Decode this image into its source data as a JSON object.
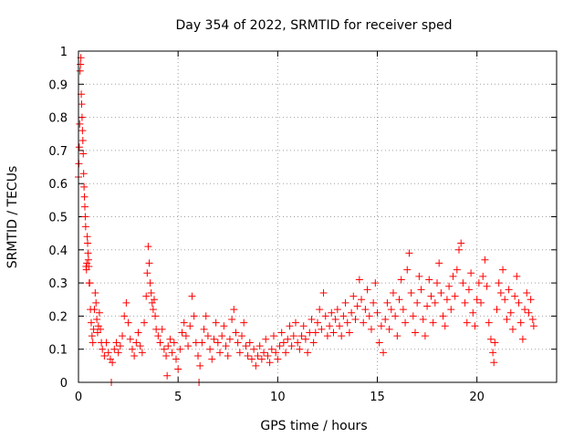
{
  "chart_data": {
    "type": "scatter",
    "title": "Day 354 of 2022, SRMTID for receiver sped",
    "xlabel": "GPS time / hours",
    "ylabel": "SRMTID / TECUs",
    "xlim": [
      0,
      24
    ],
    "ylim": [
      0,
      1
    ],
    "xticks": [
      0,
      5,
      10,
      15,
      20
    ],
    "xtick_labels": [
      "0",
      "5",
      "10",
      "15",
      "20"
    ],
    "yticks": [
      0,
      0.1,
      0.2,
      0.3,
      0.4,
      0.5,
      0.6,
      0.7,
      0.8,
      0.9,
      1
    ],
    "ytick_labels": [
      "0",
      "0.1",
      "0.2",
      "0.3",
      "0.4",
      "0.5",
      "0.6",
      "0.7",
      "0.8",
      "0.9",
      "1"
    ],
    "grid": true,
    "marker": "+",
    "color": "#ff0000",
    "series": [
      {
        "name": "SRMTID",
        "points": [
          [
            0.0,
            0.62
          ],
          [
            0.02,
            0.66
          ],
          [
            0.04,
            0.71
          ],
          [
            0.06,
            0.78
          ],
          [
            0.08,
            0.94
          ],
          [
            0.1,
            0.96
          ],
          [
            0.12,
            0.98
          ],
          [
            0.14,
            0.87
          ],
          [
            0.16,
            0.84
          ],
          [
            0.18,
            0.8
          ],
          [
            0.2,
            0.76
          ],
          [
            0.22,
            0.73
          ],
          [
            0.24,
            0.69
          ],
          [
            0.26,
            0.63
          ],
          [
            0.28,
            0.59
          ],
          [
            0.3,
            0.56
          ],
          [
            0.32,
            0.53
          ],
          [
            0.34,
            0.5
          ],
          [
            0.36,
            0.47
          ],
          [
            0.38,
            0.35
          ],
          [
            0.4,
            0.34
          ],
          [
            0.42,
            0.36
          ],
          [
            0.44,
            0.44
          ],
          [
            0.46,
            0.42
          ],
          [
            0.48,
            0.39
          ],
          [
            0.5,
            0.37
          ],
          [
            0.52,
            0.35
          ],
          [
            0.54,
            0.3
          ],
          [
            0.56,
            0.3
          ],
          [
            0.6,
            0.22
          ],
          [
            0.64,
            0.18
          ],
          [
            0.68,
            0.14
          ],
          [
            0.72,
            0.12
          ],
          [
            0.76,
            0.16
          ],
          [
            0.8,
            0.22
          ],
          [
            0.84,
            0.27
          ],
          [
            0.88,
            0.24
          ],
          [
            0.92,
            0.19
          ],
          [
            0.96,
            0.15
          ],
          [
            1.0,
            0.17
          ],
          [
            1.05,
            0.21
          ],
          [
            1.1,
            0.16
          ],
          [
            1.15,
            0.12
          ],
          [
            1.2,
            0.1
          ],
          [
            1.3,
            0.08
          ],
          [
            1.4,
            0.12
          ],
          [
            1.5,
            0.09
          ],
          [
            1.6,
            0.07
          ],
          [
            1.65,
            0.0
          ],
          [
            1.7,
            0.06
          ],
          [
            1.8,
            0.1
          ],
          [
            1.9,
            0.12
          ],
          [
            2.0,
            0.09
          ],
          [
            2.1,
            0.11
          ],
          [
            2.2,
            0.14
          ],
          [
            2.3,
            0.2
          ],
          [
            2.4,
            0.24
          ],
          [
            2.5,
            0.18
          ],
          [
            2.6,
            0.13
          ],
          [
            2.7,
            0.1
          ],
          [
            2.8,
            0.08
          ],
          [
            2.9,
            0.12
          ],
          [
            3.0,
            0.15
          ],
          [
            3.1,
            0.11
          ],
          [
            3.2,
            0.09
          ],
          [
            3.3,
            0.18
          ],
          [
            3.4,
            0.26
          ],
          [
            3.45,
            0.33
          ],
          [
            3.5,
            0.41
          ],
          [
            3.55,
            0.36
          ],
          [
            3.6,
            0.3
          ],
          [
            3.65,
            0.27
          ],
          [
            3.7,
            0.24
          ],
          [
            3.75,
            0.22
          ],
          [
            3.8,
            0.25
          ],
          [
            3.85,
            0.2
          ],
          [
            3.9,
            0.16
          ],
          [
            4.0,
            0.14
          ],
          [
            4.1,
            0.12
          ],
          [
            4.2,
            0.16
          ],
          [
            4.3,
            0.1
          ],
          [
            4.4,
            0.08
          ],
          [
            4.45,
            0.02
          ],
          [
            4.5,
            0.11
          ],
          [
            4.6,
            0.13
          ],
          [
            4.7,
            0.09
          ],
          [
            4.8,
            0.12
          ],
          [
            4.9,
            0.07
          ],
          [
            5.0,
            0.04
          ],
          [
            5.1,
            0.1
          ],
          [
            5.2,
            0.15
          ],
          [
            5.3,
            0.18
          ],
          [
            5.4,
            0.14
          ],
          [
            5.5,
            0.11
          ],
          [
            5.6,
            0.17
          ],
          [
            5.7,
            0.26
          ],
          [
            5.8,
            0.2
          ],
          [
            5.9,
            0.12
          ],
          [
            6.0,
            0.08
          ],
          [
            6.05,
            0.0
          ],
          [
            6.1,
            0.05
          ],
          [
            6.2,
            0.12
          ],
          [
            6.3,
            0.16
          ],
          [
            6.4,
            0.2
          ],
          [
            6.5,
            0.14
          ],
          [
            6.6,
            0.1
          ],
          [
            6.7,
            0.07
          ],
          [
            6.8,
            0.13
          ],
          [
            6.9,
            0.18
          ],
          [
            7.0,
            0.12
          ],
          [
            7.1,
            0.09
          ],
          [
            7.2,
            0.14
          ],
          [
            7.3,
            0.17
          ],
          [
            7.4,
            0.11
          ],
          [
            7.5,
            0.08
          ],
          [
            7.6,
            0.13
          ],
          [
            7.7,
            0.19
          ],
          [
            7.8,
            0.22
          ],
          [
            7.9,
            0.15
          ],
          [
            8.0,
            0.12
          ],
          [
            8.1,
            0.09
          ],
          [
            8.2,
            0.14
          ],
          [
            8.3,
            0.18
          ],
          [
            8.4,
            0.11
          ],
          [
            8.5,
            0.08
          ],
          [
            8.6,
            0.12
          ],
          [
            8.7,
            0.07
          ],
          [
            8.8,
            0.1
          ],
          [
            8.9,
            0.05
          ],
          [
            9.0,
            0.08
          ],
          [
            9.1,
            0.11
          ],
          [
            9.2,
            0.07
          ],
          [
            9.3,
            0.09
          ],
          [
            9.4,
            0.13
          ],
          [
            9.5,
            0.08
          ],
          [
            9.6,
            0.06
          ],
          [
            9.7,
            0.1
          ],
          [
            9.8,
            0.14
          ],
          [
            9.9,
            0.09
          ],
          [
            10.0,
            0.07
          ],
          [
            10.1,
            0.11
          ],
          [
            10.2,
            0.15
          ],
          [
            10.3,
            0.12
          ],
          [
            10.4,
            0.09
          ],
          [
            10.5,
            0.13
          ],
          [
            10.6,
            0.17
          ],
          [
            10.7,
            0.11
          ],
          [
            10.8,
            0.14
          ],
          [
            10.9,
            0.18
          ],
          [
            11.0,
            0.12
          ],
          [
            11.1,
            0.1
          ],
          [
            11.2,
            0.14
          ],
          [
            11.3,
            0.17
          ],
          [
            11.4,
            0.13
          ],
          [
            11.5,
            0.09
          ],
          [
            11.6,
            0.15
          ],
          [
            11.7,
            0.19
          ],
          [
            11.8,
            0.12
          ],
          [
            11.9,
            0.15
          ],
          [
            12.0,
            0.18
          ],
          [
            12.1,
            0.22
          ],
          [
            12.2,
            0.16
          ],
          [
            12.3,
            0.27
          ],
          [
            12.4,
            0.2
          ],
          [
            12.5,
            0.14
          ],
          [
            12.6,
            0.17
          ],
          [
            12.7,
            0.21
          ],
          [
            12.8,
            0.15
          ],
          [
            12.9,
            0.19
          ],
          [
            13.0,
            0.22
          ],
          [
            13.1,
            0.17
          ],
          [
            13.2,
            0.14
          ],
          [
            13.3,
            0.2
          ],
          [
            13.4,
            0.24
          ],
          [
            13.5,
            0.18
          ],
          [
            13.6,
            0.15
          ],
          [
            13.7,
            0.21
          ],
          [
            13.8,
            0.26
          ],
          [
            13.9,
            0.19
          ],
          [
            14.0,
            0.23
          ],
          [
            14.1,
            0.31
          ],
          [
            14.2,
            0.25
          ],
          [
            14.3,
            0.18
          ],
          [
            14.4,
            0.22
          ],
          [
            14.5,
            0.28
          ],
          [
            14.6,
            0.2
          ],
          [
            14.7,
            0.16
          ],
          [
            14.8,
            0.24
          ],
          [
            14.9,
            0.3
          ],
          [
            15.0,
            0.21
          ],
          [
            15.1,
            0.12
          ],
          [
            15.2,
            0.17
          ],
          [
            15.3,
            0.09
          ],
          [
            15.4,
            0.19
          ],
          [
            15.5,
            0.24
          ],
          [
            15.6,
            0.16
          ],
          [
            15.7,
            0.22
          ],
          [
            15.8,
            0.27
          ],
          [
            15.9,
            0.2
          ],
          [
            16.0,
            0.14
          ],
          [
            16.1,
            0.25
          ],
          [
            16.2,
            0.31
          ],
          [
            16.3,
            0.22
          ],
          [
            16.4,
            0.18
          ],
          [
            16.5,
            0.34
          ],
          [
            16.6,
            0.39
          ],
          [
            16.7,
            0.27
          ],
          [
            16.8,
            0.2
          ],
          [
            16.9,
            0.15
          ],
          [
            17.0,
            0.24
          ],
          [
            17.1,
            0.32
          ],
          [
            17.2,
            0.28
          ],
          [
            17.3,
            0.19
          ],
          [
            17.4,
            0.14
          ],
          [
            17.5,
            0.23
          ],
          [
            17.6,
            0.31
          ],
          [
            17.7,
            0.26
          ],
          [
            17.8,
            0.18
          ],
          [
            17.9,
            0.24
          ],
          [
            18.0,
            0.3
          ],
          [
            18.1,
            0.36
          ],
          [
            18.2,
            0.27
          ],
          [
            18.3,
            0.2
          ],
          [
            18.4,
            0.17
          ],
          [
            18.5,
            0.25
          ],
          [
            18.6,
            0.29
          ],
          [
            18.7,
            0.22
          ],
          [
            18.8,
            0.32
          ],
          [
            18.9,
            0.26
          ],
          [
            19.0,
            0.34
          ],
          [
            19.1,
            0.4
          ],
          [
            19.2,
            0.42
          ],
          [
            19.3,
            0.3
          ],
          [
            19.4,
            0.24
          ],
          [
            19.5,
            0.18
          ],
          [
            19.6,
            0.28
          ],
          [
            19.7,
            0.33
          ],
          [
            19.8,
            0.21
          ],
          [
            19.9,
            0.17
          ],
          [
            20.0,
            0.25
          ],
          [
            20.1,
            0.3
          ],
          [
            20.2,
            0.24
          ],
          [
            20.3,
            0.32
          ],
          [
            20.4,
            0.37
          ],
          [
            20.5,
            0.29
          ],
          [
            20.6,
            0.18
          ],
          [
            20.7,
            0.13
          ],
          [
            20.8,
            0.09
          ],
          [
            20.85,
            0.06
          ],
          [
            20.9,
            0.12
          ],
          [
            21.0,
            0.22
          ],
          [
            21.1,
            0.3
          ],
          [
            21.2,
            0.27
          ],
          [
            21.3,
            0.34
          ],
          [
            21.4,
            0.25
          ],
          [
            21.5,
            0.19
          ],
          [
            21.6,
            0.28
          ],
          [
            21.7,
            0.21
          ],
          [
            21.8,
            0.16
          ],
          [
            21.9,
            0.26
          ],
          [
            22.0,
            0.32
          ],
          [
            22.1,
            0.24
          ],
          [
            22.2,
            0.18
          ],
          [
            22.3,
            0.13
          ],
          [
            22.4,
            0.22
          ],
          [
            22.5,
            0.27
          ],
          [
            22.6,
            0.21
          ],
          [
            22.7,
            0.25
          ],
          [
            22.8,
            0.19
          ],
          [
            22.85,
            0.17
          ]
        ]
      }
    ]
  }
}
